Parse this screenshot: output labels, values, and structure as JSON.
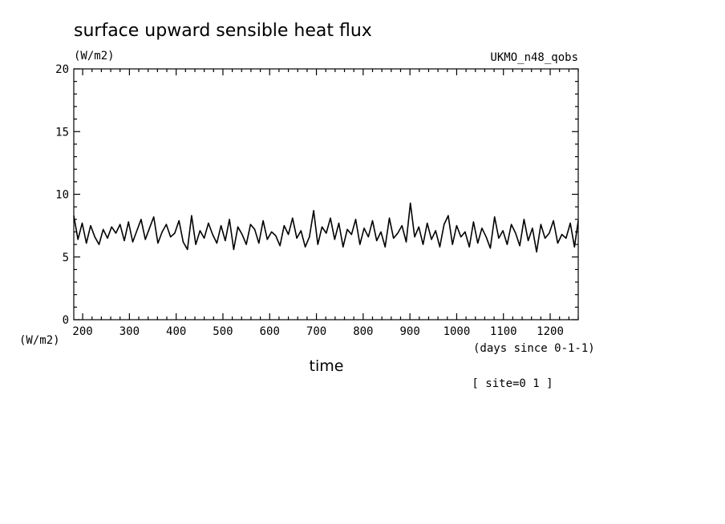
{
  "chart_data": {
    "type": "line",
    "title": "surface upward sensible heat flux",
    "units_top": "(W/m2)",
    "model_label": "UKMO_n48_qobs",
    "ylabel": "(W/m2)",
    "xlabel": "time",
    "x_units": "(days since 0-1-1)",
    "site_label": "[ site=0 1 ]",
    "xlim": [
      181,
      1260
    ],
    "ylim": [
      0,
      20
    ],
    "x_ticks": [
      200,
      300,
      400,
      500,
      600,
      700,
      800,
      900,
      1000,
      1100,
      1200
    ],
    "y_ticks": [
      0,
      5,
      10,
      15,
      20
    ],
    "series": [
      {
        "x": [
          181,
          190,
          199,
          208,
          217,
          226,
          235,
          244,
          253,
          262,
          271,
          280,
          289,
          298,
          307,
          316,
          325,
          334,
          343,
          352,
          361,
          370,
          379,
          388,
          397,
          406,
          415,
          424,
          433,
          442,
          451,
          460,
          469,
          478,
          487,
          496,
          505,
          514,
          523,
          532,
          541,
          550,
          559,
          568,
          577,
          586,
          595,
          604,
          613,
          622,
          631,
          640,
          649,
          658,
          667,
          676,
          685,
          694,
          703,
          712,
          721,
          730,
          739,
          748,
          757,
          766,
          775,
          784,
          793,
          802,
          811,
          820,
          829,
          838,
          847,
          856,
          865,
          874,
          883,
          892,
          901,
          910,
          919,
          928,
          937,
          946,
          955,
          964,
          973,
          982,
          991,
          1000,
          1009,
          1018,
          1027,
          1036,
          1045,
          1054,
          1063,
          1072,
          1081,
          1090,
          1099,
          1108,
          1117,
          1126,
          1135,
          1144,
          1153,
          1162,
          1171,
          1180,
          1189,
          1198,
          1207,
          1216,
          1225,
          1234,
          1243,
          1252,
          1260
        ],
        "y": [
          8.3,
          6.4,
          7.7,
          6.1,
          7.5,
          6.6,
          6.0,
          7.2,
          6.5,
          7.4,
          6.9,
          7.6,
          6.3,
          7.8,
          6.2,
          7.1,
          8.0,
          6.4,
          7.3,
          8.2,
          6.1,
          7.0,
          7.6,
          6.6,
          6.9,
          7.9,
          6.2,
          5.6,
          8.3,
          6.0,
          7.1,
          6.5,
          7.7,
          6.8,
          6.1,
          7.5,
          6.3,
          8.0,
          5.6,
          7.4,
          6.8,
          6.0,
          7.6,
          7.2,
          6.1,
          7.9,
          6.4,
          7.0,
          6.7,
          5.9,
          7.5,
          6.8,
          8.1,
          6.5,
          7.1,
          5.8,
          6.6,
          8.7,
          6.0,
          7.4,
          6.9,
          8.1,
          6.4,
          7.7,
          5.8,
          7.2,
          6.8,
          8.0,
          6.0,
          7.3,
          6.6,
          7.9,
          6.3,
          7.0,
          5.8,
          8.1,
          6.5,
          6.9,
          7.5,
          6.2,
          9.3,
          6.6,
          7.4,
          6.0,
          7.7,
          6.4,
          7.1,
          5.8,
          7.6,
          8.3,
          6.0,
          7.5,
          6.6,
          7.0,
          5.8,
          7.8,
          6.1,
          7.3,
          6.6,
          5.7,
          8.2,
          6.5,
          7.1,
          6.0,
          7.6,
          6.9,
          5.9,
          8.0,
          6.3,
          7.3,
          5.4,
          7.6,
          6.5,
          6.9,
          7.9,
          6.1,
          6.8,
          6.5,
          7.7,
          5.8,
          7.9
        ]
      }
    ]
  }
}
